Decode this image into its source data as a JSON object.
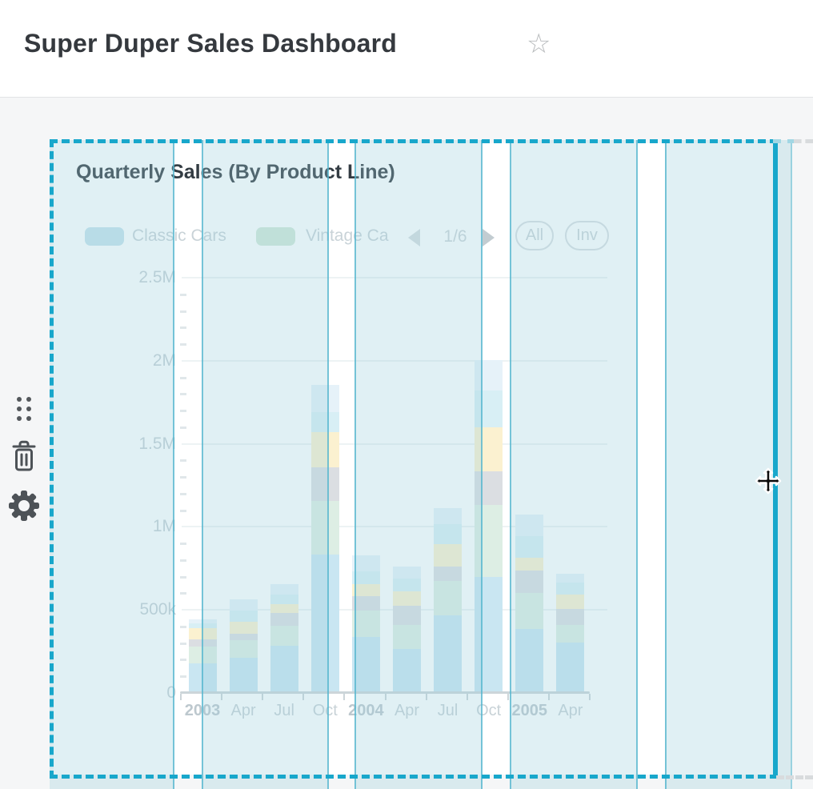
{
  "header": {
    "title": "Super Duper Sales Dashboard"
  },
  "card": {
    "title": "Quarterly Sales (By Product Line)",
    "legend": {
      "items": [
        {
          "label": "Classic Cars",
          "color": "#c6e3ed"
        },
        {
          "label": "Vintage Ca",
          "color": "#d2e8d9"
        }
      ],
      "pager": {
        "label": "1/6"
      },
      "buttons": {
        "all": "All",
        "invert": "Inv"
      }
    }
  },
  "chart_data": {
    "type": "bar",
    "stacked": true,
    "title": "Quarterly Sales (By Product Line)",
    "legend_position": "top",
    "grid": true,
    "ylim": [
      0,
      2500000
    ],
    "y_ticks": [
      {
        "label": "2.5M",
        "value": 2.5
      },
      {
        "label": "2M",
        "value": 2.0
      },
      {
        "label": "1.5M",
        "value": 1.5
      },
      {
        "label": "1M",
        "value": 1.0
      },
      {
        "label": "500k",
        "value": 0.5
      },
      {
        "label": "0",
        "value": 0.0
      }
    ],
    "categories": [
      {
        "label": "2003",
        "bold": true
      },
      {
        "label": "Apr",
        "bold": false
      },
      {
        "label": "Jul",
        "bold": false
      },
      {
        "label": "Oct",
        "bold": false
      },
      {
        "label": "2004",
        "bold": true
      },
      {
        "label": "Apr",
        "bold": false
      },
      {
        "label": "Jul",
        "bold": false
      },
      {
        "label": "Oct",
        "bold": false
      },
      {
        "label": "2005",
        "bold": true
      },
      {
        "label": "Apr",
        "bold": false
      }
    ],
    "value_unit": "millions",
    "series": [
      {
        "name": "Classic Cars",
        "color": "#c9e6f2",
        "values": [
          0.18,
          0.212,
          0.283,
          0.831,
          0.337,
          0.265,
          0.465,
          0.7,
          0.385,
          0.305
        ]
      },
      {
        "name": "Vintage Ca (truncated)",
        "color": "#ddeee4",
        "values": [
          0.1,
          0.107,
          0.124,
          0.327,
          0.16,
          0.144,
          0.207,
          0.431,
          0.216,
          0.104
        ]
      },
      {
        "name": "unlabeled-3",
        "color": "#dbdee2",
        "values": [
          0.045,
          0.037,
          0.076,
          0.2,
          0.088,
          0.115,
          0.091,
          0.204,
          0.135,
          0.099
        ]
      },
      {
        "name": "unlabeled-4",
        "color": "#fbf1d0",
        "values": [
          0.064,
          0.071,
          0.052,
          0.21,
          0.071,
          0.089,
          0.133,
          0.264,
          0.08,
          0.085
        ]
      },
      {
        "name": "unlabeled-5",
        "color": "#d8eff5",
        "values": [
          0.03,
          0.068,
          0.056,
          0.125,
          0.075,
          0.075,
          0.12,
          0.224,
          0.128,
          0.071
        ]
      },
      {
        "name": "unlabeled-6",
        "color": "#e6f2f9",
        "values": [
          0.024,
          0.069,
          0.064,
          0.16,
          0.096,
          0.072,
          0.096,
          0.183,
          0.128,
          0.056
        ]
      }
    ]
  },
  "colors": {
    "accent_teal": "#18a7cb",
    "column_guide_line": "#50b4cd",
    "column_guide_fill": "rgba(151,206,219,0.30)",
    "icon_gray": "#4d5257",
    "page_bg": "#f5f6f7",
    "axis_text": "#c8d2d7"
  }
}
